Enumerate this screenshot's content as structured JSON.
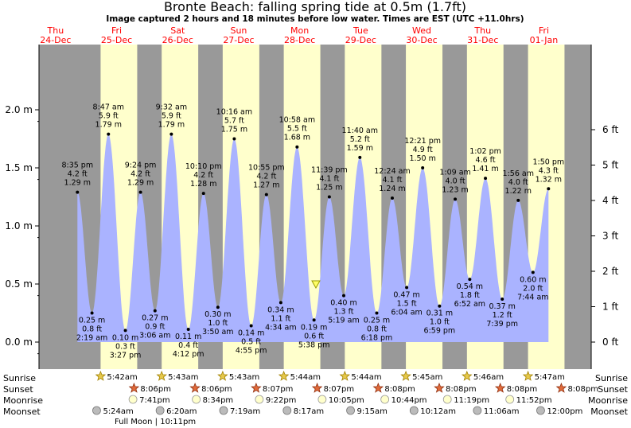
{
  "title": "Bronte Beach: falling  spring tide at 0.5m (1.7ft)",
  "subtitle": "Image captured 2 hours and 18 minutes before low water. Times are EST (UTC +11.0hrs)",
  "colors": {
    "background": "#ffffcc",
    "night": "#999999",
    "water": "#aab3ff",
    "day_label": "#ff0000",
    "sun": "#e6b800",
    "moon": "#ffffcc"
  },
  "icons": {
    "sunrise": "yellow-star-icon",
    "sunset": "orange-star-icon",
    "moonrise": "pale-moon-circle-icon",
    "moonset": "grey-moon-circle-icon",
    "current": "yellow-triangle-marker-icon"
  },
  "row_labels": {
    "sunrise": "Sunrise",
    "sunset": "Sunset",
    "moonrise": "Moonrise",
    "moonset": "Moonset"
  },
  "full_moon_note": "Full Moon | 10:11pm",
  "days": [
    {
      "dow": "Thu",
      "date": "24-Dec"
    },
    {
      "dow": "Fri",
      "date": "25-Dec"
    },
    {
      "dow": "Sat",
      "date": "26-Dec"
    },
    {
      "dow": "Sun",
      "date": "27-Dec"
    },
    {
      "dow": "Mon",
      "date": "28-Dec"
    },
    {
      "dow": "Tue",
      "date": "29-Dec"
    },
    {
      "dow": "Wed",
      "date": "30-Dec"
    },
    {
      "dow": "Thu",
      "date": "31-Dec"
    },
    {
      "dow": "Fri",
      "date": "01-Jan"
    }
  ],
  "sunrise": [
    "5:42am",
    "5:43am",
    "5:43am",
    "5:44am",
    "5:44am",
    "5:45am",
    "5:46am",
    "5:47am"
  ],
  "sunset": [
    "8:06pm",
    "8:06pm",
    "8:07pm",
    "8:07pm",
    "8:08pm",
    "8:08pm",
    "8:08pm",
    "8:08pm"
  ],
  "moonrise": [
    "7:41pm",
    "8:34pm",
    "9:22pm",
    "10:05pm",
    "10:44pm",
    "11:19pm",
    "11:52pm"
  ],
  "moonset": [
    "5:24am",
    "6:20am",
    "7:19am",
    "8:17am",
    "9:15am",
    "10:12am",
    "11:06am",
    "12:00pm"
  ],
  "chart_data": {
    "type": "area",
    "title": "Bronte Beach: falling  spring tide at 0.5m (1.7ft)",
    "subtitle": "Image captured 2 hours and 18 minutes before low water. Times are EST (UTC +11.0hrs)",
    "y_left": {
      "ticks": [
        "0.0 m",
        "0.5 m",
        "1.0 m",
        "1.5 m",
        "2.0 m"
      ],
      "ylim": [
        0,
        2.0
      ]
    },
    "y_right": {
      "ticks": [
        "0 ft",
        "1 ft",
        "2 ft",
        "3 ft",
        "4 ft",
        "5 ft",
        "6 ft"
      ]
    },
    "current_level_m": 0.5,
    "grid": false,
    "tides": [
      {
        "kind": "high",
        "time": "8:35 pm",
        "ft": "4.2 ft",
        "m": 1.29,
        "m_label": "1.29 m"
      },
      {
        "kind": "low",
        "time": "2:19 am",
        "ft": "0.8 ft",
        "m": 0.25,
        "m_label": "0.25 m"
      },
      {
        "kind": "high",
        "time": "8:47 am",
        "ft": "5.9 ft",
        "m": 1.79,
        "m_label": "1.79 m"
      },
      {
        "kind": "low",
        "time": "3:27 pm",
        "ft": "0.3 ft",
        "m": 0.1,
        "m_label": "0.10 m"
      },
      {
        "kind": "high",
        "time": "9:24 pm",
        "ft": "4.2 ft",
        "m": 1.29,
        "m_label": "1.29 m"
      },
      {
        "kind": "low",
        "time": "3:06 am",
        "ft": "0.9 ft",
        "m": 0.27,
        "m_label": "0.27 m"
      },
      {
        "kind": "high",
        "time": "9:32 am",
        "ft": "5.9 ft",
        "m": 1.79,
        "m_label": "1.79 m"
      },
      {
        "kind": "low",
        "time": "4:12 pm",
        "ft": "0.4 ft",
        "m": 0.11,
        "m_label": "0.11 m"
      },
      {
        "kind": "high",
        "time": "10:10 pm",
        "ft": "4.2 ft",
        "m": 1.28,
        "m_label": "1.28 m"
      },
      {
        "kind": "low",
        "time": "3:50 am",
        "ft": "1.0 ft",
        "m": 0.3,
        "m_label": "0.30 m"
      },
      {
        "kind": "high",
        "time": "10:16 am",
        "ft": "5.7 ft",
        "m": 1.75,
        "m_label": "1.75 m"
      },
      {
        "kind": "low",
        "time": "4:55 pm",
        "ft": "0.5 ft",
        "m": 0.14,
        "m_label": "0.14 m"
      },
      {
        "kind": "high",
        "time": "10:55 pm",
        "ft": "4.2 ft",
        "m": 1.27,
        "m_label": "1.27 m"
      },
      {
        "kind": "low",
        "time": "4:34 am",
        "ft": "1.1 ft",
        "m": 0.34,
        "m_label": "0.34 m"
      },
      {
        "kind": "high",
        "time": "10:58 am",
        "ft": "5.5 ft",
        "m": 1.68,
        "m_label": "1.68 m"
      },
      {
        "kind": "low",
        "time": "5:38 pm",
        "ft": "0.6 ft",
        "m": 0.19,
        "m_label": "0.19 m"
      },
      {
        "kind": "high",
        "time": "11:39 pm",
        "ft": "4.1 ft",
        "m": 1.25,
        "m_label": "1.25 m"
      },
      {
        "kind": "low",
        "time": "5:19 am",
        "ft": "1.3 ft",
        "m": 0.4,
        "m_label": "0.40 m"
      },
      {
        "kind": "high",
        "time": "11:40 am",
        "ft": "5.2 ft",
        "m": 1.59,
        "m_label": "1.59 m"
      },
      {
        "kind": "low",
        "time": "6:18 pm",
        "ft": "0.8 ft",
        "m": 0.25,
        "m_label": "0.25 m"
      },
      {
        "kind": "high",
        "time": "12:24 am",
        "ft": "4.1 ft",
        "m": 1.24,
        "m_label": "1.24 m"
      },
      {
        "kind": "low",
        "time": "6:04 am",
        "ft": "1.5 ft",
        "m": 0.47,
        "m_label": "0.47 m"
      },
      {
        "kind": "high",
        "time": "12:21 pm",
        "ft": "4.9 ft",
        "m": 1.5,
        "m_label": "1.50 m"
      },
      {
        "kind": "low",
        "time": "6:59 pm",
        "ft": "1.0 ft",
        "m": 0.31,
        "m_label": "0.31 m"
      },
      {
        "kind": "high",
        "time": "1:09 am",
        "ft": "4.0 ft",
        "m": 1.23,
        "m_label": "1.23 m"
      },
      {
        "kind": "low",
        "time": "6:52 am",
        "ft": "1.8 ft",
        "m": 0.54,
        "m_label": "0.54 m"
      },
      {
        "kind": "high",
        "time": "1:02 pm",
        "ft": "4.6 ft",
        "m": 1.41,
        "m_label": "1.41 m"
      },
      {
        "kind": "low",
        "time": "7:39 pm",
        "ft": "1.2 ft",
        "m": 0.37,
        "m_label": "0.37 m"
      },
      {
        "kind": "high",
        "time": "1:56 am",
        "ft": "4.0 ft",
        "m": 1.22,
        "m_label": "1.22 m"
      },
      {
        "kind": "low",
        "time": "7:44 am",
        "ft": "2.0 ft",
        "m": 0.6,
        "m_label": "0.60 m"
      },
      {
        "kind": "high",
        "time": "1:50 pm",
        "ft": "4.3 ft",
        "m": 1.32,
        "m_label": "1.32 m"
      }
    ]
  }
}
